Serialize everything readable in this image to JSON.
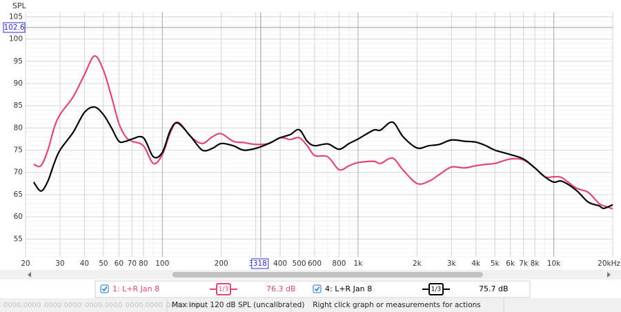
{
  "chart_data": {
    "type": "line",
    "y_label": "SPL",
    "log_x": true,
    "grid": true,
    "xlim": [
      20,
      20000
    ],
    "ylim": [
      51,
      106
    ],
    "xticks": [
      20,
      30,
      40,
      50,
      60,
      70,
      80,
      100,
      200,
      300,
      400,
      500,
      600,
      800,
      {
        "value": 1000,
        "label": "1k"
      },
      {
        "value": 2000,
        "label": "2k"
      },
      {
        "value": 3000,
        "label": "3k"
      },
      {
        "value": 4000,
        "label": "4k"
      },
      {
        "value": 5000,
        "label": "5k"
      },
      {
        "value": 6000,
        "label": "6k"
      },
      {
        "value": 7000,
        "label": "7k"
      },
      {
        "value": 8000,
        "label": "8k"
      },
      {
        "value": 10000,
        "label": "10k"
      },
      {
        "value": 20000,
        "label": "20kHz"
      }
    ],
    "yticks": [
      55,
      60,
      65,
      70,
      75,
      80,
      85,
      90,
      95,
      100,
      105
    ],
    "cursor_x": 318,
    "cursor_y": 102.6,
    "x": [
      22,
      24,
      26,
      28,
      30,
      35,
      40,
      45,
      50,
      55,
      60,
      65,
      70,
      80,
      90,
      100,
      110,
      120,
      140,
      160,
      180,
      200,
      230,
      260,
      300,
      350,
      400,
      450,
      500,
      550,
      600,
      700,
      800,
      900,
      1000,
      1200,
      1300,
      1500,
      1700,
      2000,
      2300,
      2600,
      3000,
      3500,
      4000,
      4500,
      5000,
      6000,
      7000,
      8000,
      9000,
      10000,
      11000,
      13000,
      15000,
      17000,
      18000,
      20000
    ],
    "series": [
      {
        "name": "1: L+R Jan 8",
        "color": "#e0457b",
        "smoothing": "1/3",
        "level": "76.3 dB",
        "values": [
          71.8,
          71.5,
          75,
          80,
          83,
          87,
          92,
          96.2,
          93,
          87,
          81,
          78,
          77,
          76,
          72,
          74,
          79,
          81.3,
          78,
          76.5,
          78,
          78.7,
          77,
          76.7,
          76.3,
          76.5,
          77.8,
          77.4,
          77.8,
          76,
          73.8,
          73.5,
          70.6,
          71.5,
          72.2,
          72.5,
          72,
          73.2,
          70.5,
          67.5,
          68,
          69.5,
          71.2,
          71,
          71.5,
          71.8,
          72,
          73,
          72.8,
          71,
          69,
          69,
          68.8,
          66.5,
          65.5,
          63,
          62.5,
          61.8
        ]
      },
      {
        "name": "4: L+R Jan 8",
        "color": "#000000",
        "smoothing": "1/3",
        "level": "75.7 dB",
        "values": [
          67.8,
          65.8,
          68,
          72,
          75,
          79,
          83.5,
          84.7,
          83,
          80,
          77,
          77,
          77.5,
          77.8,
          73.5,
          74.5,
          79.5,
          81.1,
          78,
          75,
          75.4,
          76.5,
          76,
          75,
          75.4,
          76.5,
          77.8,
          78.5,
          79.6,
          77,
          76,
          76.4,
          75.2,
          76.5,
          77.5,
          79.5,
          79.5,
          81.3,
          78,
          75.5,
          76,
          76.3,
          77.3,
          77,
          76.8,
          76,
          75,
          74,
          73,
          71,
          69,
          67.8,
          68,
          66,
          63.3,
          62.5,
          61.9,
          62.7
        ]
      }
    ]
  },
  "status": {
    "placeholders": [
      "0000.0000",
      "0000.0000",
      "0000.0000",
      "0000.0000",
      "0000.0000"
    ],
    "max_input": "Max input 120 dB SPL (uncalibrated)",
    "hint": "Right click graph or measurements for actions"
  }
}
